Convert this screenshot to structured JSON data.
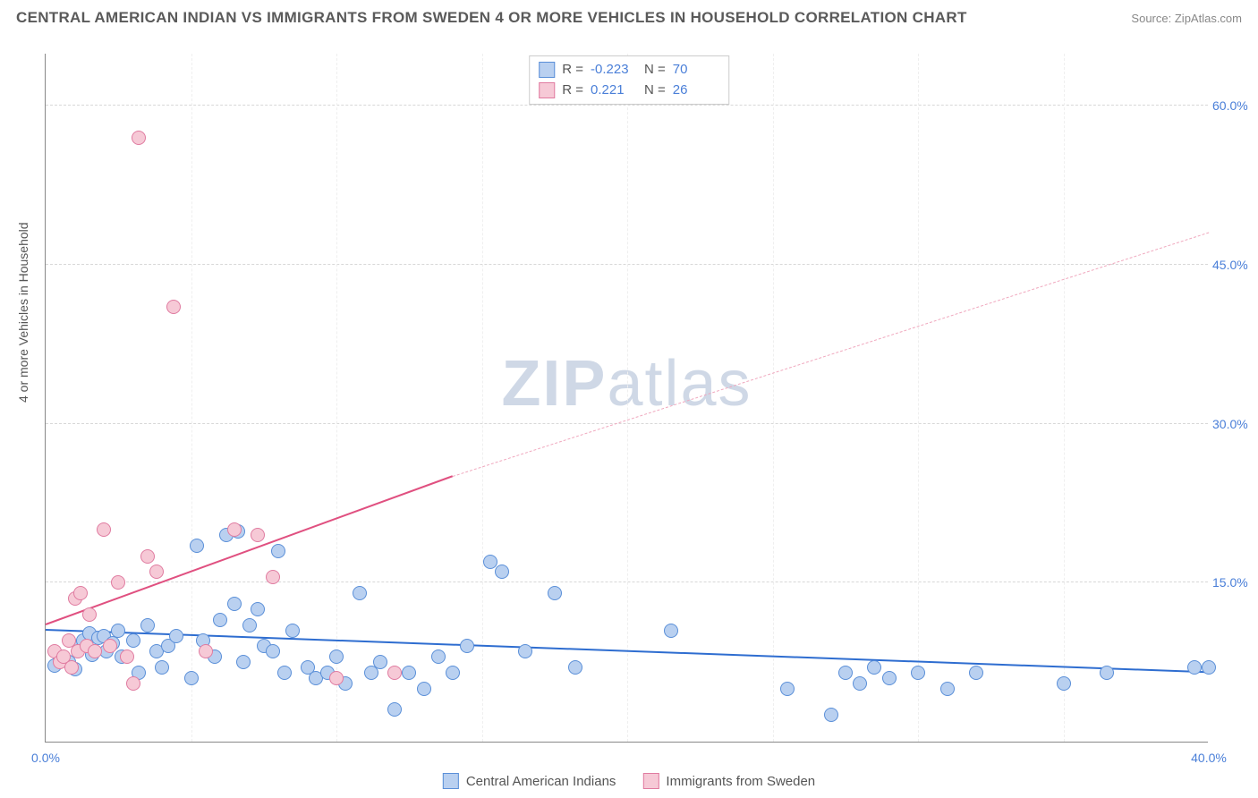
{
  "title": "CENTRAL AMERICAN INDIAN VS IMMIGRANTS FROM SWEDEN 4 OR MORE VEHICLES IN HOUSEHOLD CORRELATION CHART",
  "source_label": "Source:",
  "source_name": "ZipAtlas.com",
  "ylabel": "4 or more Vehicles in Household",
  "watermark_a": "ZIP",
  "watermark_b": "atlas",
  "chart": {
    "type": "scatter",
    "xlim": [
      0,
      40
    ],
    "ylim": [
      0,
      65
    ],
    "xticks": [
      0,
      40
    ],
    "xtick_labels": [
      "0.0%",
      "40.0%"
    ],
    "yticks": [
      15,
      30,
      45,
      60
    ],
    "ytick_labels": [
      "15.0%",
      "30.0%",
      "45.0%",
      "60.0%"
    ],
    "grid_color": "#d8d8d8",
    "background_color": "#ffffff",
    "axis_color": "#888888",
    "marker_radius": 8,
    "series": [
      {
        "name": "Central American Indians",
        "label": "Central American Indians",
        "fill": "#b9d0f0",
        "stroke": "#5a8fd8",
        "R": "-0.223",
        "N": "70",
        "trend": {
          "x1": 0,
          "y1": 10.5,
          "x2": 40,
          "y2": 6.5,
          "color": "#2e6dd0",
          "width": 2.5,
          "dash": false
        },
        "points": [
          [
            0.3,
            7.2
          ],
          [
            0.5,
            8.0
          ],
          [
            0.8,
            7.5
          ],
          [
            1.0,
            6.8
          ],
          [
            1.2,
            9.0
          ],
          [
            1.3,
            9.5
          ],
          [
            1.5,
            10.2
          ],
          [
            1.6,
            8.2
          ],
          [
            1.8,
            9.8
          ],
          [
            2.0,
            10.0
          ],
          [
            2.1,
            8.5
          ],
          [
            2.3,
            9.3
          ],
          [
            2.5,
            10.5
          ],
          [
            2.6,
            8.0
          ],
          [
            3.0,
            9.5
          ],
          [
            3.2,
            6.5
          ],
          [
            3.5,
            11.0
          ],
          [
            3.8,
            8.5
          ],
          [
            4.0,
            7.0
          ],
          [
            4.2,
            9.0
          ],
          [
            4.5,
            10.0
          ],
          [
            5.0,
            6.0
          ],
          [
            5.2,
            18.5
          ],
          [
            5.4,
            9.5
          ],
          [
            5.8,
            8.0
          ],
          [
            6.0,
            11.5
          ],
          [
            6.2,
            19.5
          ],
          [
            6.5,
            13.0
          ],
          [
            6.6,
            19.8
          ],
          [
            6.8,
            7.5
          ],
          [
            7.0,
            11.0
          ],
          [
            7.3,
            12.5
          ],
          [
            7.5,
            9.0
          ],
          [
            7.8,
            8.5
          ],
          [
            8.0,
            18.0
          ],
          [
            8.2,
            6.5
          ],
          [
            8.5,
            10.5
          ],
          [
            9.0,
            7.0
          ],
          [
            9.3,
            6.0
          ],
          [
            9.7,
            6.5
          ],
          [
            10.0,
            8.0
          ],
          [
            10.3,
            5.5
          ],
          [
            10.8,
            14.0
          ],
          [
            11.2,
            6.5
          ],
          [
            11.5,
            7.5
          ],
          [
            12.0,
            3.0
          ],
          [
            12.5,
            6.5
          ],
          [
            13.0,
            5.0
          ],
          [
            13.5,
            8.0
          ],
          [
            14.0,
            6.5
          ],
          [
            14.5,
            9.0
          ],
          [
            15.3,
            17.0
          ],
          [
            15.7,
            16.0
          ],
          [
            16.5,
            8.5
          ],
          [
            17.5,
            14.0
          ],
          [
            18.2,
            7.0
          ],
          [
            21.5,
            10.5
          ],
          [
            25.5,
            5.0
          ],
          [
            27.0,
            2.5
          ],
          [
            27.5,
            6.5
          ],
          [
            28.0,
            5.5
          ],
          [
            28.5,
            7.0
          ],
          [
            29.0,
            6.0
          ],
          [
            30.0,
            6.5
          ],
          [
            31.0,
            5.0
          ],
          [
            32.0,
            6.5
          ],
          [
            35.0,
            5.5
          ],
          [
            36.5,
            6.5
          ],
          [
            39.5,
            7.0
          ],
          [
            40.0,
            7.0
          ]
        ]
      },
      {
        "name": "Immigrants from Sweden",
        "label": "Immigrants from Sweden",
        "fill": "#f6c9d6",
        "stroke": "#e07ba0",
        "R": "0.221",
        "N": "26",
        "trend_solid": {
          "x1": 0,
          "y1": 11.0,
          "x2": 14,
          "y2": 25.0,
          "color": "#e05080",
          "width": 2.5
        },
        "trend_dashed": {
          "x1": 14,
          "y1": 25.0,
          "x2": 40,
          "y2": 48.0,
          "color": "#f0a8be",
          "width": 1.5
        },
        "points": [
          [
            0.3,
            8.5
          ],
          [
            0.5,
            7.5
          ],
          [
            0.6,
            8.0
          ],
          [
            0.8,
            9.5
          ],
          [
            0.9,
            7.0
          ],
          [
            1.0,
            13.5
          ],
          [
            1.1,
            8.5
          ],
          [
            1.2,
            14.0
          ],
          [
            1.4,
            9.0
          ],
          [
            1.5,
            12.0
          ],
          [
            1.7,
            8.5
          ],
          [
            2.0,
            20.0
          ],
          [
            2.2,
            9.0
          ],
          [
            2.5,
            15.0
          ],
          [
            2.8,
            8.0
          ],
          [
            3.0,
            5.5
          ],
          [
            3.2,
            57.0
          ],
          [
            3.5,
            17.5
          ],
          [
            3.8,
            16.0
          ],
          [
            4.4,
            41.0
          ],
          [
            5.5,
            8.5
          ],
          [
            6.5,
            20.0
          ],
          [
            7.3,
            19.5
          ],
          [
            7.8,
            15.5
          ],
          [
            10.0,
            6.0
          ],
          [
            12.0,
            6.5
          ]
        ]
      }
    ]
  },
  "legend_labels": {
    "R": "R =",
    "N": "N ="
  }
}
